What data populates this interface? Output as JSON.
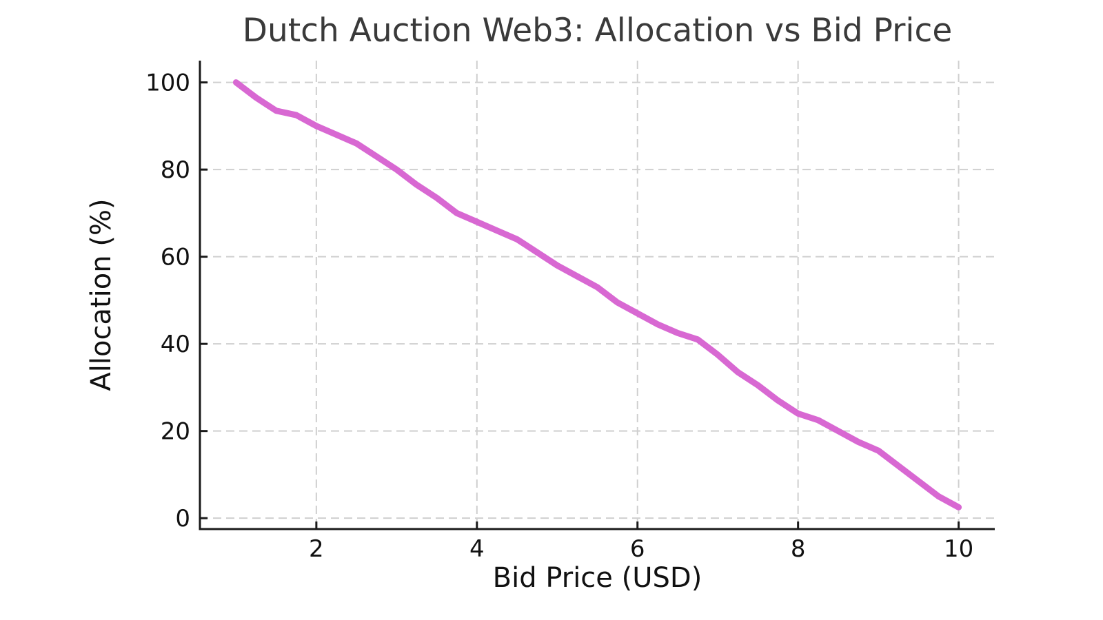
{
  "chart_data": {
    "type": "line",
    "title": "Dutch Auction Web3: Allocation vs Bid Price",
    "xlabel": "Bid Price (USD)",
    "ylabel": "Allocation (%)",
    "x": [
      1.0,
      1.25,
      1.5,
      1.75,
      2.0,
      2.25,
      2.5,
      2.75,
      3.0,
      3.25,
      3.5,
      3.75,
      4.0,
      4.25,
      4.5,
      4.75,
      5.0,
      5.25,
      5.5,
      5.75,
      6.0,
      6.25,
      6.5,
      6.75,
      7.0,
      7.25,
      7.5,
      7.75,
      8.0,
      8.25,
      8.5,
      8.75,
      9.0,
      9.25,
      9.5,
      9.75,
      10.0
    ],
    "series": [
      {
        "name": "Allocation",
        "values": [
          100.0,
          96.5,
          93.5,
          92.5,
          90.0,
          88.0,
          86.0,
          83.0,
          80.0,
          76.5,
          73.5,
          70.0,
          68.0,
          66.0,
          64.0,
          61.0,
          58.0,
          55.5,
          53.0,
          49.5,
          47.0,
          44.5,
          42.5,
          41.0,
          37.5,
          33.5,
          30.5,
          27.0,
          24.0,
          22.5,
          20.0,
          17.5,
          15.5,
          12.0,
          8.5,
          5.0,
          2.5
        ],
        "color": "#d868d2"
      }
    ],
    "xlim": [
      0.55,
      10.45
    ],
    "ylim": [
      -2.5,
      105
    ],
    "xticks": [
      2,
      4,
      6,
      8,
      10
    ],
    "yticks": [
      0,
      20,
      40,
      60,
      80,
      100
    ],
    "grid": true,
    "grid_style": "dashed",
    "legend": false
  },
  "style": {
    "background": "#ffffff",
    "grid_color": "#cfcfcf",
    "spine_color": "#1a1a1a",
    "tick_color": "#1a1a1a",
    "tick_label_color": "#111111",
    "axis_label_color": "#111111",
    "title_color": "#3a3a3a"
  }
}
